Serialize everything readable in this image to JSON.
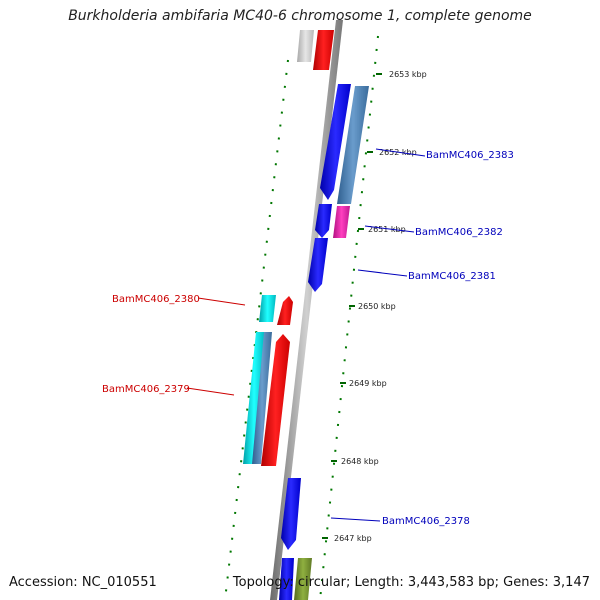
{
  "title": "Burkholderia ambifaria MC40-6 chromosome 1, complete genome",
  "footer": {
    "accession": "Accession: NC_010551",
    "topology": "Topology: circular; Length: 3,443,583 bp; Genes: 3,147"
  },
  "ticks": [
    "2653 kbp",
    "2652 kbp",
    "2651 kbp",
    "2650 kbp",
    "2649 kbp",
    "2648 kbp",
    "2647 kbp"
  ],
  "gene_labels": [
    {
      "text": "BamMC406_2383",
      "color": "#0000bb"
    },
    {
      "text": "BamMC406_2382",
      "color": "#0000bb"
    },
    {
      "text": "BamMC406_2381",
      "color": "#0000bb"
    },
    {
      "text": "BamMC406_2380",
      "color": "#cc0000"
    },
    {
      "text": "BamMC406_2379",
      "color": "#cc0000"
    },
    {
      "text": "BamMC406_2378",
      "color": "#0000bb"
    }
  ],
  "colors": {
    "forward_cds": "#0000ff",
    "forward_other": "#4682b4",
    "reverse_cds": "#ff0000",
    "reverse_other": "#00c8c8",
    "magenta": "#e020a0",
    "grey_feature": "#c0c0c0",
    "olive": "#6b8e23",
    "backbone": "#888888",
    "tick_green": "#006400"
  }
}
